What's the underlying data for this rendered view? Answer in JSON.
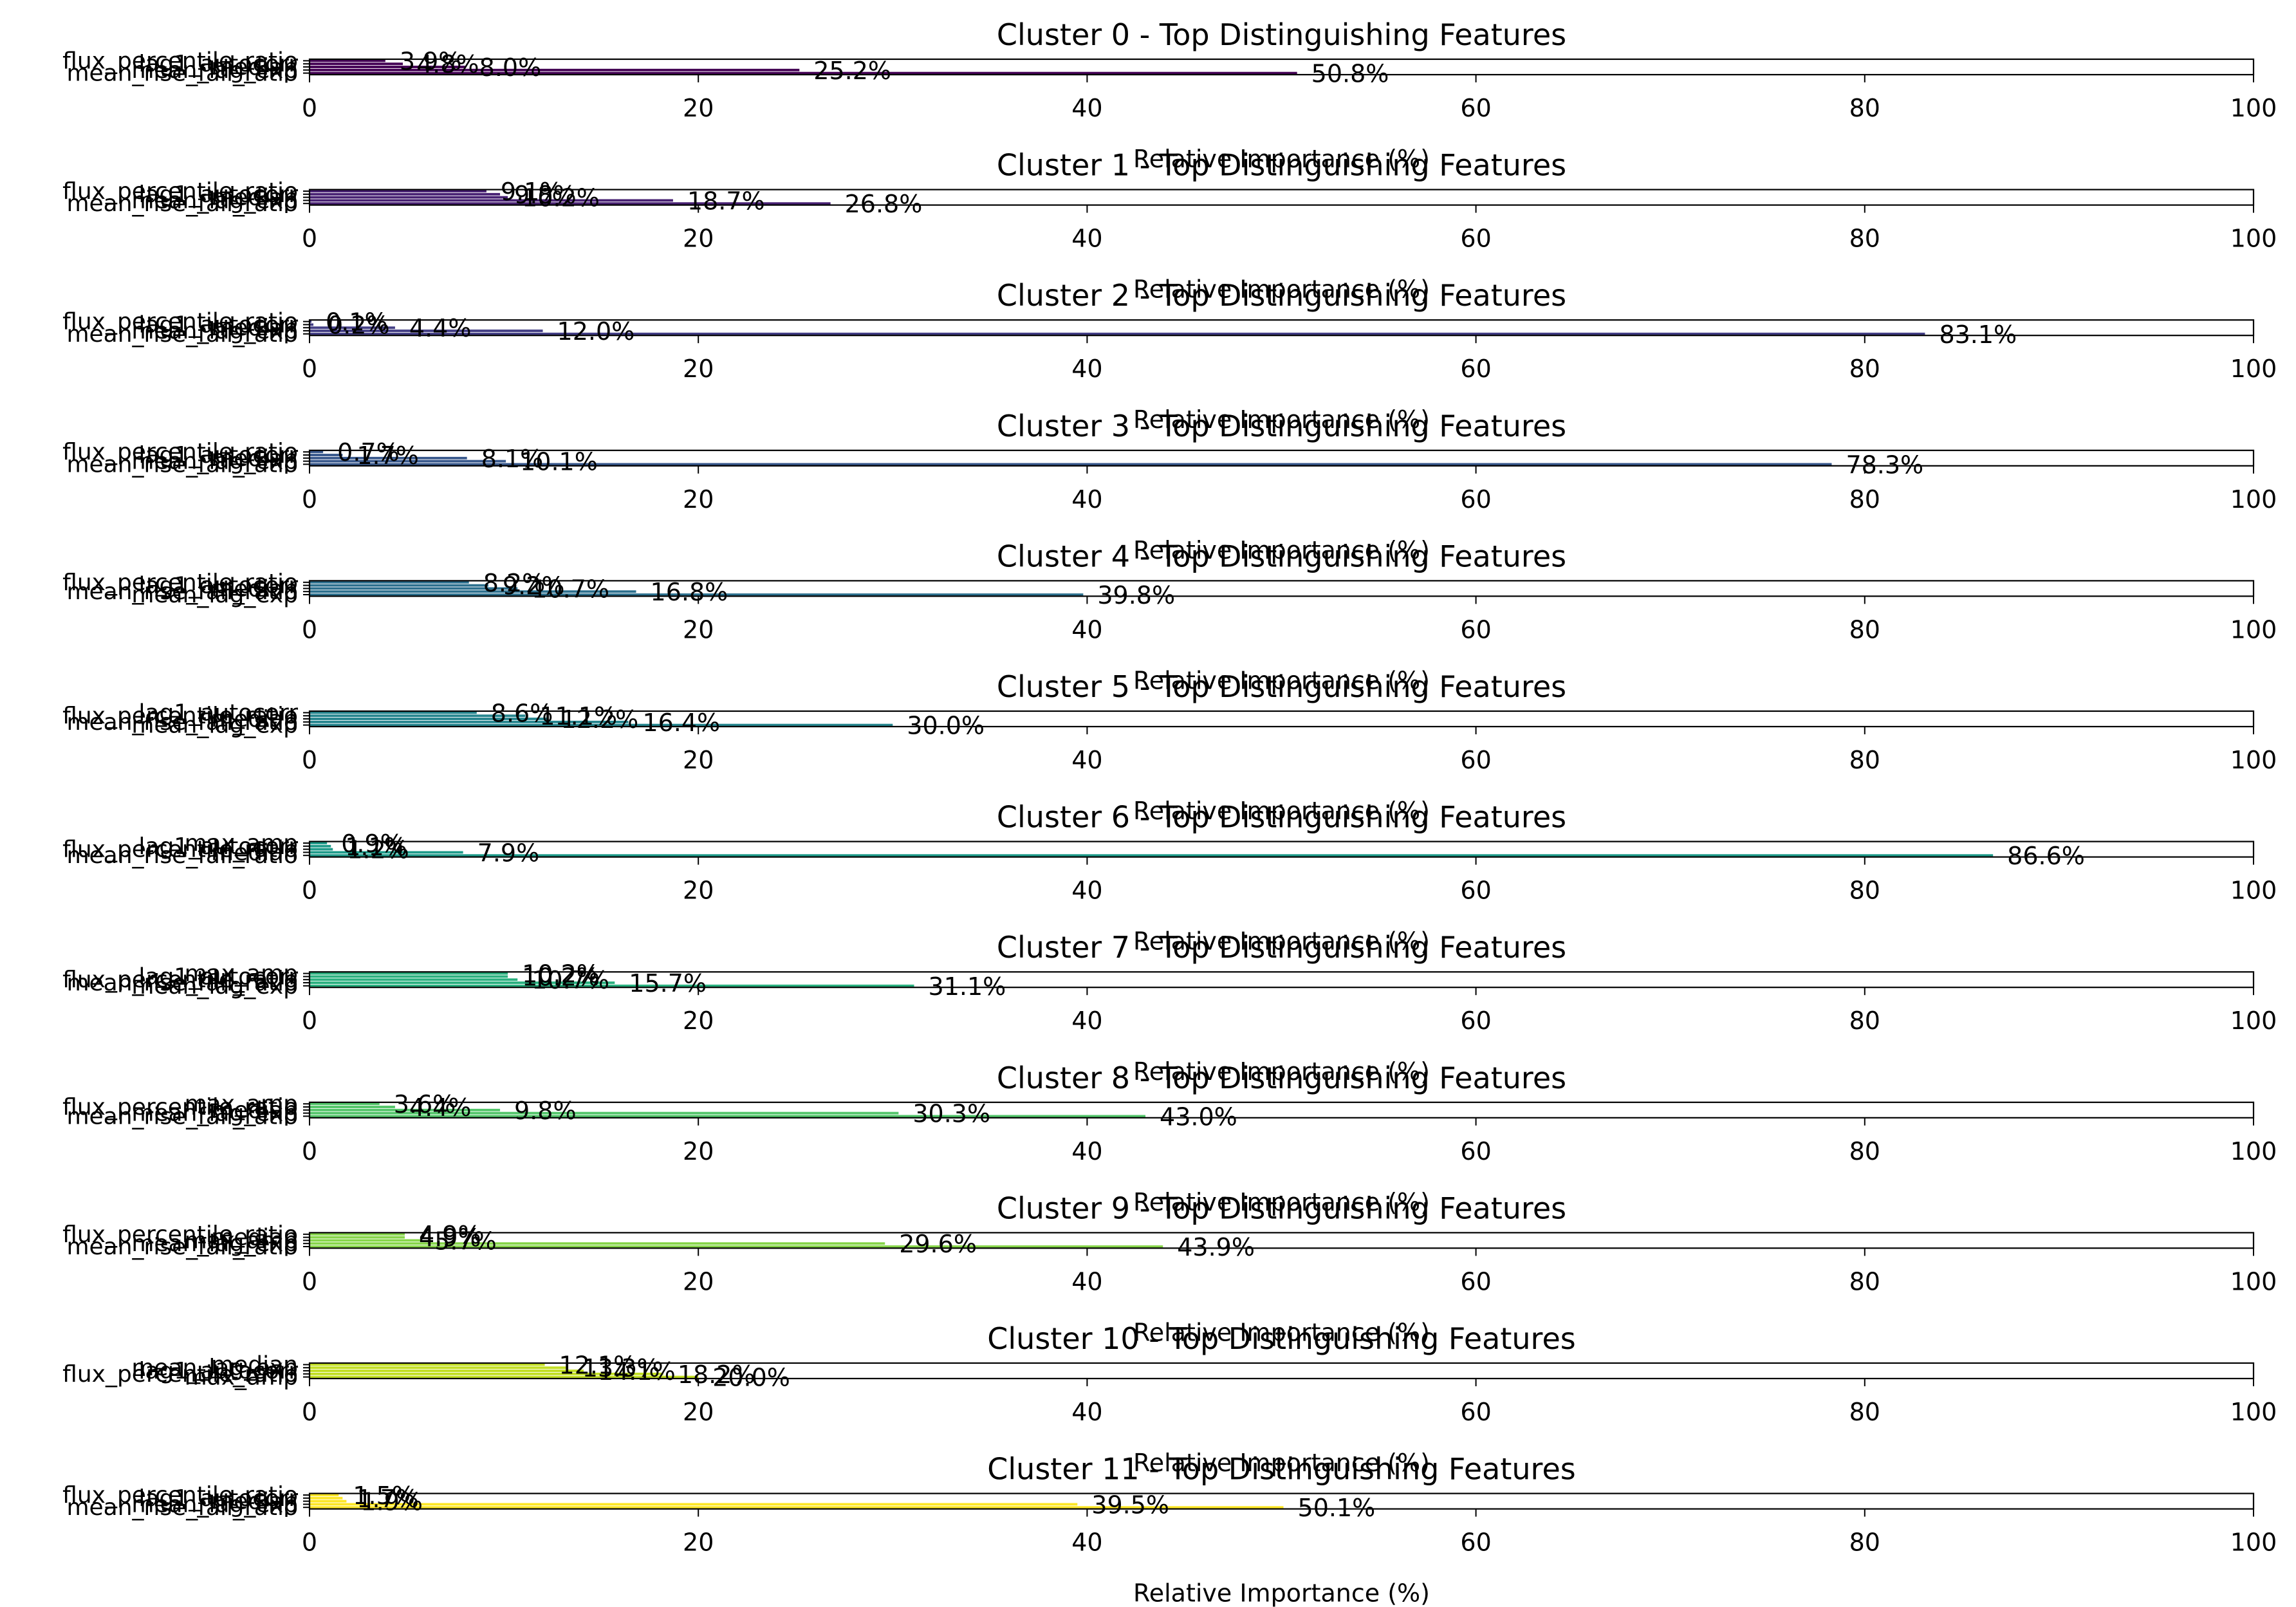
{
  "chart_data": [
    {
      "type": "bar",
      "title": "Cluster 0 - Top Distinguishing Features",
      "xlabel": "Relative Importance (%)",
      "xlim": [
        0,
        100
      ],
      "xticks": [
        "0",
        "20",
        "40",
        "60",
        "80",
        "100"
      ],
      "categories": [
        "mean_rise_fall_ratio",
        "mean_lag_exp",
        "median",
        "lag1_autocorr",
        "flux_percentile_ratio"
      ],
      "values": [
        50.8,
        25.2,
        8.0,
        4.8,
        3.9
      ],
      "value_labels": [
        "50.8%",
        "25.2%",
        "8.0%",
        "4.8%",
        "3.9%"
      ],
      "color": "#440154"
    },
    {
      "type": "bar",
      "title": "Cluster 1 - Top Distinguishing Features",
      "xlabel": "Relative Importance (%)",
      "xlim": [
        0,
        100
      ],
      "xticks": [
        "0",
        "20",
        "40",
        "60",
        "80",
        "100"
      ],
      "categories": [
        "mean_rise_fall_ratio",
        "mean_lag_exp",
        "median",
        "lag1_autocorr",
        "flux_percentile_ratio"
      ],
      "values": [
        26.8,
        18.7,
        10.2,
        9.8,
        9.1
      ],
      "value_labels": [
        "26.8%",
        "18.7%",
        "10.2%",
        "9.8%",
        "9.1%"
      ],
      "color": "#482173"
    },
    {
      "type": "bar",
      "title": "Cluster 2 - Top Distinguishing Features",
      "xlabel": "Relative Importance (%)",
      "xlim": [
        0,
        100
      ],
      "xticks": [
        "0",
        "20",
        "40",
        "60",
        "80",
        "100"
      ],
      "categories": [
        "mean_rise_fall_ratio",
        "mean_lag_exp",
        "median",
        "lag1_autocorr",
        "flux_percentile_ratio"
      ],
      "values": [
        83.1,
        12.0,
        4.4,
        0.2,
        0.1
      ],
      "value_labels": [
        "83.1%",
        "12.0%",
        "4.4%",
        "0.2%",
        "0.1%"
      ],
      "color": "#433e85"
    },
    {
      "type": "bar",
      "title": "Cluster 3 - Top Distinguishing Features",
      "xlabel": "Relative Importance (%)",
      "xlim": [
        0,
        100
      ],
      "xticks": [
        "0",
        "20",
        "40",
        "60",
        "80",
        "100"
      ],
      "categories": [
        "mean_rise_fall_ratio",
        "mean_lag_exp",
        "median",
        "lag1_autocorr",
        "flux_percentile_ratio"
      ],
      "values": [
        78.3,
        10.1,
        8.1,
        1.7,
        0.7
      ],
      "value_labels": [
        "78.3%",
        "10.1%",
        "8.1%",
        "1.7%",
        "0.7%"
      ],
      "color": "#38588c"
    },
    {
      "type": "bar",
      "title": "Cluster 4 - Top Distinguishing Features",
      "xlabel": "Relative Importance (%)",
      "xlim": [
        0,
        100
      ],
      "xticks": [
        "0",
        "20",
        "40",
        "60",
        "80",
        "100"
      ],
      "categories": [
        "mean_lag_exp",
        "mean_rise_fall_ratio",
        "median",
        "lag1_autocorr",
        "flux_percentile_ratio"
      ],
      "values": [
        39.8,
        16.8,
        10.7,
        9.2,
        8.2
      ],
      "value_labels": [
        "39.8%",
        "16.8%",
        "10.7%",
        "9.2%",
        "8.2%"
      ],
      "color": "#2d708e"
    },
    {
      "type": "bar",
      "title": "Cluster 5 - Top Distinguishing Features",
      "xlabel": "Relative Importance (%)",
      "xlim": [
        0,
        100
      ],
      "xticks": [
        "0",
        "20",
        "40",
        "60",
        "80",
        "100"
      ],
      "categories": [
        "mean_lag_exp",
        "mean_rise_fall_ratio",
        "median",
        "flux_percentile_ratio",
        "lag1_autocorr"
      ],
      "values": [
        30.0,
        16.4,
        12.2,
        11.1,
        8.6
      ],
      "value_labels": [
        "30.0%",
        "16.4%",
        "12.2%",
        "11.1%",
        "8.6%"
      ],
      "color": "#25858e"
    },
    {
      "type": "bar",
      "title": "Cluster 6 - Top Distinguishing Features",
      "xlabel": "Relative Importance (%)",
      "xlim": [
        0,
        100
      ],
      "xticks": [
        "0",
        "20",
        "40",
        "60",
        "80",
        "100"
      ],
      "categories": [
        "mean_rise_fall_ratio",
        "median",
        "flux_percentile_ratio",
        "lag1_autocorr",
        "max_amp"
      ],
      "values": [
        86.6,
        7.9,
        1.2,
        1.1,
        0.9
      ],
      "value_labels": [
        "86.6%",
        "7.9%",
        "1.2%",
        "1.1%",
        "0.9%"
      ],
      "color": "#1e9b8a"
    },
    {
      "type": "bar",
      "title": "Cluster 7 - Top Distinguishing Features",
      "xlabel": "Relative Importance (%)",
      "xlim": [
        0,
        100
      ],
      "xticks": [
        "0",
        "20",
        "40",
        "60",
        "80",
        "100"
      ],
      "categories": [
        "mean_lag_exp",
        "mean_rise_fall_ratio",
        "flux_percentile_ratio",
        "lag1_autocorr",
        "max_amp"
      ],
      "values": [
        31.1,
        15.7,
        10.7,
        10.2,
        10.2
      ],
      "value_labels": [
        "31.1%",
        "15.7%",
        "10.7%",
        "10.2%",
        "10.2%"
      ],
      "color": "#2ab07f"
    },
    {
      "type": "bar",
      "title": "Cluster 8 - Top Distinguishing Features",
      "xlabel": "Relative Importance (%)",
      "xlim": [
        0,
        100
      ],
      "xticks": [
        "0",
        "20",
        "40",
        "60",
        "80",
        "100"
      ],
      "categories": [
        "mean_rise_fall_ratio",
        "mean_lag_exp",
        "median",
        "flux_percentile_ratio",
        "max_amp"
      ],
      "values": [
        43.0,
        30.3,
        9.8,
        4.4,
        3.6
      ],
      "value_labels": [
        "43.0%",
        "30.3%",
        "9.8%",
        "4.4%",
        "3.6%"
      ],
      "color": "#52c569"
    },
    {
      "type": "bar",
      "title": "Cluster 9 - Top Distinguishing Features",
      "xlabel": "Relative Importance (%)",
      "xlim": [
        0,
        100
      ],
      "xticks": [
        "0",
        "20",
        "40",
        "60",
        "80",
        "100"
      ],
      "categories": [
        "mean_rise_fall_ratio",
        "mean_lag_exp",
        "max_amp",
        "median",
        "flux_percentile_ratio"
      ],
      "values": [
        43.9,
        29.6,
        5.7,
        4.9,
        4.9
      ],
      "value_labels": [
        "43.9%",
        "29.6%",
        "5.7%",
        "4.9%",
        "4.9%"
      ],
      "color": "#86d549"
    },
    {
      "type": "bar",
      "title": "Cluster 10 - Top Distinguishing Features",
      "xlabel": "Relative Importance (%)",
      "xlim": [
        0,
        100
      ],
      "xticks": [
        "0",
        "20",
        "40",
        "60",
        "80",
        "100"
      ],
      "categories": [
        "max_amp",
        "flux_percentile_ratio",
        "lag1_autocorr",
        "mean_lag_exp",
        "median"
      ],
      "values": [
        20.0,
        18.2,
        14.1,
        13.3,
        12.1
      ],
      "value_labels": [
        "20.0%",
        "18.2%",
        "14.1%",
        "13.3%",
        "12.1%"
      ],
      "color": "#c2df23"
    },
    {
      "type": "bar",
      "title": "Cluster 11 - Top Distinguishing Features",
      "xlabel": "Relative Importance (%)",
      "xlim": [
        0,
        100
      ],
      "xticks": [
        "0",
        "20",
        "40",
        "60",
        "80",
        "100"
      ],
      "categories": [
        "mean_rise_fall_ratio",
        "mean_lag_exp",
        "median",
        "lag1_autocorr",
        "flux_percentile_ratio"
      ],
      "values": [
        50.1,
        39.5,
        1.9,
        1.7,
        1.5
      ],
      "value_labels": [
        "50.1%",
        "39.5%",
        "1.9%",
        "1.7%",
        "1.5%"
      ],
      "color": "#fde725"
    }
  ]
}
